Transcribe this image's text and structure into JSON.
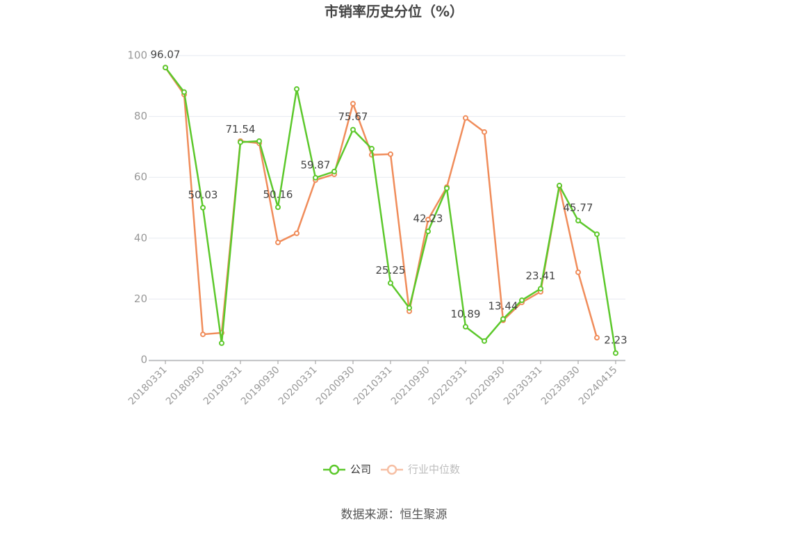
{
  "chart_data": {
    "type": "line",
    "title": "市销率历史分位（%）",
    "categories": [
      "20180331",
      null,
      "20180930",
      null,
      "20190331",
      null,
      "20190930",
      null,
      "20200331",
      null,
      "20200930",
      null,
      "20210331",
      null,
      "20210930",
      null,
      "20220331",
      null,
      "20220930",
      null,
      "20230331",
      null,
      "20230930",
      null,
      "20240415"
    ],
    "series": [
      {
        "name": "公司",
        "color": "#5cc82b",
        "values": [
          96.07,
          88,
          50.03,
          5.5,
          71.54,
          71.9,
          50.16,
          89,
          59.87,
          61.9,
          75.67,
          69.4,
          25.25,
          17.1,
          42.23,
          56.4,
          10.89,
          6.2,
          13.44,
          19.6,
          23.41,
          57.3,
          45.77,
          41.3,
          2.23
        ],
        "value_labels": [
          "96.07",
          null,
          "50.03",
          null,
          "71.54",
          null,
          "50.16",
          null,
          "59.87",
          null,
          "75.67",
          null,
          "25.25",
          null,
          "42.23",
          null,
          "10.89",
          null,
          "13.44",
          null,
          "23.41",
          null,
          "45.77",
          null,
          "2.23"
        ]
      },
      {
        "name": "行业中位数",
        "color": "#f08c5a",
        "values": [
          96.07,
          87.2,
          8.4,
          8.9,
          71.9,
          71.2,
          38.6,
          41.6,
          59.1,
          61,
          84.2,
          67.4,
          67.6,
          16,
          46.1,
          56.8,
          79.5,
          74.9,
          13,
          18.9,
          22.4,
          57.1,
          28.8,
          7.3,
          null
        ]
      }
    ],
    "ylim": [
      0,
      100
    ],
    "yticks": [
      0,
      20,
      40,
      60,
      80,
      100
    ],
    "grid": true,
    "legend": "bottom",
    "source": "数据来源：恒生聚源"
  }
}
